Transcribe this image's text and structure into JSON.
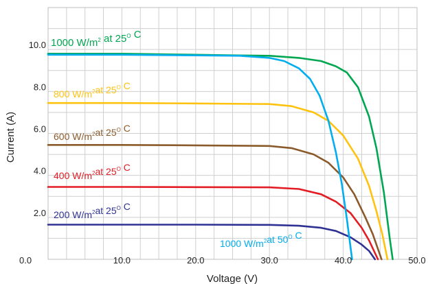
{
  "chart_data": {
    "type": "line",
    "xlabel": "Voltage (V)",
    "ylabel": "Current (A)",
    "xlim": [
      0,
      50
    ],
    "ylim": [
      0,
      12
    ],
    "grid": true,
    "x_ticks": [
      0,
      10,
      20,
      30,
      40,
      50
    ],
    "x_tick_labels": [
      "0.0",
      "10.0",
      "20.0",
      "30.0",
      "40.0",
      "50.0"
    ],
    "y_ticks": [
      2,
      4,
      6,
      8,
      10
    ],
    "y_tick_labels": [
      "2.0",
      "4.0",
      "6.0",
      "8.0",
      "10.0"
    ],
    "series": [
      {
        "name": "1000 W/m² at 25° C",
        "label": {
          "prefix": "1000 W/m",
          "sup1": "2",
          "mid": " at 25",
          "sup2": "O",
          "suffix": " C"
        },
        "color": "#00a650",
        "x": [
          0,
          10,
          20,
          25,
          30,
          34,
          37,
          39,
          40.5,
          42,
          43.5,
          44.5,
          45.5,
          46.3,
          46.7
        ],
        "y": [
          9.8,
          9.8,
          9.75,
          9.72,
          9.7,
          9.6,
          9.45,
          9.2,
          8.9,
          8.2,
          6.8,
          5.3,
          3.2,
          1.0,
          0
        ]
      },
      {
        "name": "800 W/m² at 25° C",
        "label": {
          "prefix": "800 W/m",
          "sup1": "2",
          "mid": "at 25",
          "sup2": "O",
          "suffix": " C"
        },
        "color": "#ffc20e",
        "x": [
          0,
          10,
          20,
          30,
          33,
          36,
          38,
          40,
          42,
          43.5,
          44.5,
          45.3,
          46
        ],
        "y": [
          7.45,
          7.45,
          7.43,
          7.4,
          7.3,
          7.0,
          6.6,
          5.9,
          4.8,
          3.5,
          2.3,
          1.2,
          0
        ]
      },
      {
        "name": "600 W/m² at 25° C",
        "label": {
          "prefix": "600 W/m",
          "sup1": "2",
          "mid": "at 25",
          "sup2": "O",
          "suffix": " C"
        },
        "color": "#8b5a2b",
        "x": [
          0,
          10,
          20,
          30,
          33,
          36,
          38,
          40,
          41.5,
          43,
          44,
          45.2
        ],
        "y": [
          5.45,
          5.45,
          5.43,
          5.4,
          5.3,
          5.0,
          4.6,
          3.9,
          3.1,
          2.0,
          1.2,
          0
        ]
      },
      {
        "name": "400 W/m² at 25° C",
        "label": {
          "prefix": "400 W/m",
          "sup1": "2",
          "mid": "at 25",
          "sup2": "O",
          "suffix": " C"
        },
        "color": "#e31b23",
        "x": [
          0,
          10,
          20,
          30,
          34,
          37,
          39,
          41,
          42.5,
          43.5,
          44.7
        ],
        "y": [
          3.45,
          3.45,
          3.44,
          3.43,
          3.35,
          3.1,
          2.75,
          2.2,
          1.5,
          0.9,
          0
        ]
      },
      {
        "name": "200 W/m² at 25° C",
        "label": {
          "prefix": "200 W/m",
          "sup1": "2",
          "mid": "at 25",
          "sup2": "O",
          "suffix": " C"
        },
        "color": "#2e3192",
        "x": [
          0,
          10,
          20,
          30,
          34,
          37,
          39,
          41,
          42.5,
          43.5,
          44.3
        ],
        "y": [
          1.65,
          1.65,
          1.65,
          1.64,
          1.6,
          1.5,
          1.35,
          1.05,
          0.7,
          0.4,
          0
        ]
      },
      {
        "name": "1000 W/m² at 50° C",
        "label": {
          "prefix": "1000 W/m",
          "sup1": "2",
          "mid": "at 50",
          "sup2": "O",
          "suffix": " C"
        },
        "color": "#00aeef",
        "x": [
          0,
          10,
          20,
          26,
          30,
          32,
          34,
          35.5,
          36.8,
          38,
          39,
          39.8,
          40.5,
          41.2
        ],
        "y": [
          9.75,
          9.75,
          9.72,
          9.7,
          9.6,
          9.45,
          9.1,
          8.6,
          7.8,
          6.6,
          5.1,
          3.6,
          1.9,
          0
        ]
      }
    ]
  }
}
